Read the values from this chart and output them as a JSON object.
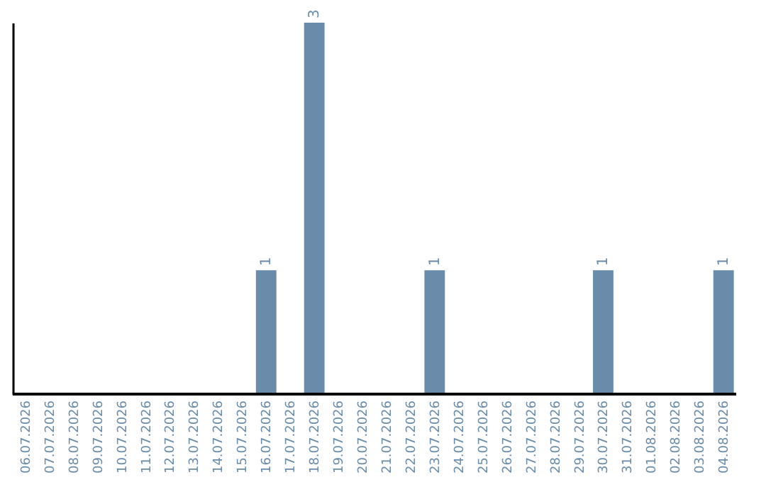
{
  "chart_data": {
    "type": "bar",
    "categories": [
      "06.07.2026",
      "07.07.2026",
      "08.07.2026",
      "09.07.2026",
      "10.07.2026",
      "11.07.2026",
      "12.07.2026",
      "13.07.2026",
      "14.07.2026",
      "15.07.2026",
      "16.07.2026",
      "17.07.2026",
      "18.07.2026",
      "19.07.2026",
      "20.07.2026",
      "21.07.2026",
      "22.07.2026",
      "23.07.2026",
      "24.07.2026",
      "25.07.2026",
      "26.07.2026",
      "27.07.2026",
      "28.07.2026",
      "29.07.2026",
      "30.07.2026",
      "31.07.2026",
      "01.08.2026",
      "02.08.2026",
      "03.08.2026",
      "04.08.2026"
    ],
    "values": [
      0,
      0,
      0,
      0,
      0,
      0,
      0,
      0,
      0,
      0,
      1,
      0,
      3,
      0,
      0,
      0,
      0,
      1,
      0,
      0,
      0,
      0,
      0,
      0,
      1,
      0,
      0,
      0,
      0,
      1
    ],
    "value_labels": [
      null,
      null,
      null,
      null,
      null,
      null,
      null,
      null,
      null,
      null,
      "1",
      null,
      "3",
      null,
      null,
      null,
      null,
      "1",
      null,
      null,
      null,
      null,
      null,
      null,
      "1",
      null,
      null,
      null,
      null,
      "1"
    ],
    "color": "#6a8caa"
  }
}
